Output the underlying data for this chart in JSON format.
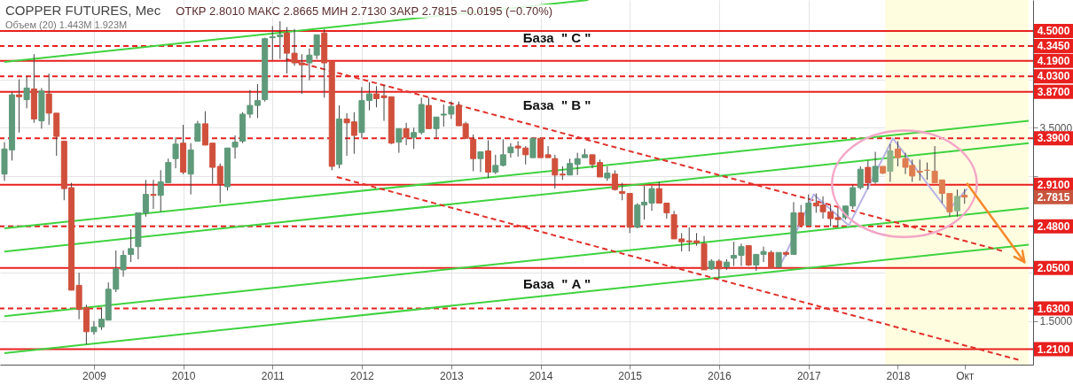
{
  "chart_data": {
    "type": "candlestick",
    "title": "COPPER FUTURES, Мес",
    "subtitle": "ОТКР 2.8010   МАКС 2.8665   МИН 2.7130   ЗАКР 2.7815   −0.0195 (−0.70%)",
    "annotations": [
      "Объем (20)  1.443M  1.923M",
      "База  \" C \"",
      "База  \" B \"",
      "База  \" A \"",
      "2.7815"
    ],
    "x": [
      "2008-01",
      "2008-02",
      "2008-03",
      "2008-04",
      "2008-05",
      "2008-06",
      "2008-07",
      "2008-08",
      "2008-09",
      "2008-10",
      "2008-11",
      "2008-12",
      "2009-01",
      "2009-02",
      "2009-03",
      "2009-04",
      "2009-05",
      "2009-06",
      "2009-07",
      "2009-08",
      "2009-09",
      "2009-10",
      "2009-11",
      "2009-12",
      "2010-01",
      "2010-02",
      "2010-03",
      "2010-04",
      "2010-05",
      "2010-06",
      "2010-07",
      "2010-08",
      "2010-09",
      "2010-10",
      "2010-11",
      "2010-12",
      "2011-01",
      "2011-02",
      "2011-03",
      "2011-04",
      "2011-05",
      "2011-06",
      "2011-07",
      "2011-08",
      "2011-09",
      "2011-10",
      "2011-11",
      "2011-12",
      "2012-01",
      "2012-02",
      "2012-03",
      "2012-04",
      "2012-05",
      "2012-06",
      "2012-07",
      "2012-08",
      "2012-09",
      "2012-10",
      "2012-11",
      "2012-12",
      "2013-01",
      "2013-02",
      "2013-03",
      "2013-04",
      "2013-05",
      "2013-06",
      "2013-07",
      "2013-08",
      "2013-09",
      "2013-10",
      "2013-11",
      "2013-12",
      "2014-01",
      "2014-02",
      "2014-03",
      "2014-04",
      "2014-05",
      "2014-06",
      "2014-07",
      "2014-08",
      "2014-09",
      "2014-10",
      "2014-11",
      "2014-12",
      "2015-01",
      "2015-02",
      "2015-03",
      "2015-04",
      "2015-05",
      "2015-06",
      "2015-07",
      "2015-08",
      "2015-09",
      "2015-10",
      "2015-11",
      "2015-12",
      "2016-01",
      "2016-02",
      "2016-03",
      "2016-04",
      "2016-05",
      "2016-06",
      "2016-07",
      "2016-08",
      "2016-09",
      "2016-10",
      "2016-11",
      "2016-12",
      "2017-01",
      "2017-02",
      "2017-03",
      "2017-04",
      "2017-05",
      "2017-06",
      "2017-07",
      "2017-08",
      "2017-09",
      "2017-10",
      "2017-11",
      "2017-12",
      "2018-01",
      "2018-02",
      "2018-03",
      "2018-04",
      "2018-05",
      "2018-06",
      "2018-07",
      "2018-08",
      "2018-09",
      "2018-10"
    ],
    "ohlc": [
      [
        3.02,
        3.35,
        2.95,
        3.28
      ],
      [
        3.27,
        3.87,
        3.16,
        3.84
      ],
      [
        3.84,
        4.0,
        3.45,
        3.82
      ],
      [
        3.79,
        4.03,
        3.7,
        3.91
      ],
      [
        3.9,
        4.26,
        3.55,
        3.59
      ],
      [
        3.57,
        3.91,
        3.49,
        3.88
      ],
      [
        3.85,
        4.06,
        3.53,
        3.65
      ],
      [
        3.65,
        3.65,
        3.21,
        3.41
      ],
      [
        3.36,
        3.36,
        2.75,
        2.87
      ],
      [
        2.88,
        2.93,
        1.82,
        1.82
      ],
      [
        1.87,
        2.0,
        1.52,
        1.62
      ],
      [
        1.64,
        1.67,
        1.26,
        1.39
      ],
      [
        1.39,
        1.5,
        1.36,
        1.44
      ],
      [
        1.44,
        1.64,
        1.41,
        1.52
      ],
      [
        1.51,
        1.9,
        1.51,
        1.83
      ],
      [
        1.83,
        2.23,
        1.8,
        2.04
      ],
      [
        2.03,
        2.23,
        1.96,
        2.18
      ],
      [
        2.19,
        2.45,
        2.11,
        2.25
      ],
      [
        2.27,
        2.62,
        2.14,
        2.62
      ],
      [
        2.62,
        2.96,
        2.58,
        2.81
      ],
      [
        2.81,
        2.96,
        2.66,
        2.8
      ],
      [
        2.8,
        3.06,
        2.63,
        2.94
      ],
      [
        2.93,
        3.18,
        2.93,
        3.14
      ],
      [
        3.18,
        3.4,
        3.08,
        3.33
      ],
      [
        3.34,
        3.53,
        3.02,
        3.04
      ],
      [
        3.02,
        3.34,
        2.81,
        3.27
      ],
      [
        3.36,
        3.57,
        3.36,
        3.54
      ],
      [
        3.54,
        3.67,
        3.32,
        3.32
      ],
      [
        3.34,
        3.34,
        2.92,
        3.09
      ],
      [
        3.1,
        3.13,
        2.72,
        2.92
      ],
      [
        2.89,
        3.29,
        2.85,
        3.29
      ],
      [
        3.3,
        3.42,
        3.18,
        3.35
      ],
      [
        3.36,
        3.66,
        3.34,
        3.64
      ],
      [
        3.64,
        3.89,
        3.6,
        3.73
      ],
      [
        3.73,
        3.95,
        3.6,
        3.78
      ],
      [
        3.79,
        4.43,
        3.77,
        4.42
      ],
      [
        4.43,
        4.55,
        4.2,
        4.44
      ],
      [
        4.44,
        4.6,
        4.21,
        4.46
      ],
      [
        4.48,
        4.54,
        4.06,
        4.27
      ],
      [
        4.27,
        4.52,
        4.14,
        4.17
      ],
      [
        4.17,
        4.26,
        3.85,
        4.15
      ],
      [
        4.17,
        4.32,
        3.99,
        4.25
      ],
      [
        4.25,
        4.46,
        4.21,
        4.46
      ],
      [
        4.48,
        4.52,
        3.81,
        4.17
      ],
      [
        4.18,
        4.18,
        3.06,
        3.1
      ],
      [
        3.12,
        3.73,
        3.08,
        3.59
      ],
      [
        3.59,
        3.65,
        3.21,
        3.55
      ],
      [
        3.56,
        3.66,
        3.23,
        3.42
      ],
      [
        3.45,
        3.92,
        3.39,
        3.78
      ],
      [
        3.78,
        3.97,
        3.68,
        3.85
      ],
      [
        3.85,
        3.93,
        3.71,
        3.8
      ],
      [
        3.83,
        3.94,
        3.57,
        3.81
      ],
      [
        3.82,
        3.82,
        3.33,
        3.34
      ],
      [
        3.35,
        3.49,
        3.24,
        3.49
      ],
      [
        3.49,
        3.55,
        3.32,
        3.4
      ],
      [
        3.4,
        3.5,
        3.28,
        3.45
      ],
      [
        3.45,
        3.81,
        3.43,
        3.74
      ],
      [
        3.73,
        3.81,
        3.49,
        3.49
      ],
      [
        3.49,
        3.61,
        3.39,
        3.61
      ],
      [
        3.63,
        3.74,
        3.51,
        3.64
      ],
      [
        3.64,
        3.77,
        3.59,
        3.72
      ],
      [
        3.73,
        3.77,
        3.52,
        3.52
      ],
      [
        3.54,
        3.56,
        3.39,
        3.39
      ],
      [
        3.38,
        3.43,
        3.05,
        3.18
      ],
      [
        3.18,
        3.25,
        3.04,
        3.25
      ],
      [
        3.26,
        3.37,
        2.98,
        3.04
      ],
      [
        3.04,
        3.22,
        3.02,
        3.11
      ],
      [
        3.11,
        3.38,
        3.1,
        3.22
      ],
      [
        3.24,
        3.34,
        3.19,
        3.3
      ],
      [
        3.31,
        3.36,
        3.2,
        3.29
      ],
      [
        3.29,
        3.31,
        3.12,
        3.22
      ],
      [
        3.19,
        3.4,
        3.19,
        3.39
      ],
      [
        3.39,
        3.4,
        3.19,
        3.19
      ],
      [
        3.22,
        3.31,
        3.19,
        3.19
      ],
      [
        3.18,
        3.22,
        2.87,
        3.01
      ],
      [
        3.02,
        3.1,
        2.96,
        3.01
      ],
      [
        3.01,
        3.18,
        3.01,
        3.13
      ],
      [
        3.12,
        3.24,
        3.01,
        3.18
      ],
      [
        3.19,
        3.28,
        3.19,
        3.22
      ],
      [
        3.22,
        3.22,
        3.08,
        3.12
      ],
      [
        3.14,
        3.17,
        2.99,
        2.99
      ],
      [
        2.98,
        3.1,
        2.95,
        3.03
      ],
      [
        3.02,
        3.06,
        2.85,
        2.86
      ],
      [
        2.84,
        2.93,
        2.75,
        2.82
      ],
      [
        2.82,
        2.82,
        2.41,
        2.47
      ],
      [
        2.47,
        2.72,
        2.46,
        2.7
      ],
      [
        2.7,
        2.9,
        2.55,
        2.73
      ],
      [
        2.72,
        2.9,
        2.64,
        2.87
      ],
      [
        2.87,
        2.94,
        2.72,
        2.72
      ],
      [
        2.72,
        2.72,
        2.56,
        2.62
      ],
      [
        2.6,
        2.64,
        2.35,
        2.35
      ],
      [
        2.35,
        2.41,
        2.22,
        2.32
      ],
      [
        2.33,
        2.47,
        2.22,
        2.32
      ],
      [
        2.33,
        2.41,
        2.28,
        2.31
      ],
      [
        2.3,
        2.38,
        2.03,
        2.03
      ],
      [
        2.04,
        2.14,
        2.03,
        2.12
      ],
      [
        2.12,
        2.14,
        1.94,
        2.04
      ],
      [
        2.06,
        2.14,
        2.03,
        2.11
      ],
      [
        2.15,
        2.32,
        2.07,
        2.18
      ],
      [
        2.18,
        2.3,
        2.07,
        2.27
      ],
      [
        2.28,
        2.28,
        2.07,
        2.08
      ],
      [
        2.08,
        2.19,
        2.02,
        2.19
      ],
      [
        2.19,
        2.27,
        2.11,
        2.22
      ],
      [
        2.21,
        2.23,
        2.05,
        2.05
      ],
      [
        2.06,
        2.21,
        2.05,
        2.21
      ],
      [
        2.21,
        2.22,
        2.17,
        2.19
      ],
      [
        2.19,
        2.73,
        2.19,
        2.62
      ],
      [
        2.62,
        2.7,
        2.49,
        2.49
      ],
      [
        2.49,
        2.81,
        2.49,
        2.72
      ],
      [
        2.72,
        2.82,
        2.62,
        2.69
      ],
      [
        2.7,
        2.79,
        2.56,
        2.63
      ],
      [
        2.63,
        2.7,
        2.48,
        2.56
      ],
      [
        2.57,
        2.67,
        2.47,
        2.55
      ],
      [
        2.57,
        2.69,
        2.55,
        2.69
      ],
      [
        2.69,
        2.91,
        2.66,
        2.88
      ],
      [
        2.88,
        3.1,
        2.86,
        3.07
      ],
      [
        3.09,
        3.16,
        2.86,
        2.93
      ],
      [
        2.94,
        3.25,
        2.92,
        3.1
      ],
      [
        3.1,
        3.1,
        3.02,
        3.03
      ],
      [
        3.05,
        3.33,
        2.94,
        3.26
      ],
      [
        3.28,
        3.36,
        3.1,
        3.19
      ],
      [
        3.18,
        3.24,
        3.02,
        3.09
      ],
      [
        3.11,
        3.17,
        2.94,
        3.0
      ],
      [
        3.05,
        3.17,
        2.95,
        3.04
      ],
      [
        3.06,
        3.14,
        2.96,
        3.06
      ],
      [
        3.05,
        3.31,
        2.93,
        2.93
      ],
      [
        2.96,
        2.96,
        2.72,
        2.82
      ],
      [
        2.82,
        2.82,
        2.58,
        2.63
      ],
      [
        2.64,
        2.86,
        2.58,
        2.79
      ],
      [
        2.801,
        2.8665,
        2.713,
        2.7815
      ]
    ],
    "colors": [
      "#5f9a7a",
      "#5f9a7a",
      "#d0503c",
      "#5f9a7a",
      "#d0503c",
      "#5f9a7a",
      "#d0503c",
      "#d0503c",
      "#d0503c",
      "#d0503c",
      "#d0503c",
      "#d0503c",
      "#5f9a7a",
      "#5f9a7a",
      "#5f9a7a",
      "#5f9a7a",
      "#5f9a7a",
      "#5f9a7a",
      "#5f9a7a",
      "#5f9a7a",
      "#d0503c",
      "#5f9a7a",
      "#5f9a7a",
      "#5f9a7a",
      "#d0503c",
      "#5f9a7a",
      "#5f9a7a",
      "#d0503c",
      "#d0503c",
      "#d0503c",
      "#5f9a7a",
      "#5f9a7a",
      "#5f9a7a",
      "#5f9a7a",
      "#5f9a7a",
      "#5f9a7a",
      "#5f9a7a",
      "#5f9a7a",
      "#d0503c",
      "#d0503c",
      "#d0503c",
      "#5f9a7a",
      "#5f9a7a",
      "#d0503c",
      "#d0503c",
      "#5f9a7a",
      "#d0503c",
      "#d0503c",
      "#5f9a7a",
      "#5f9a7a",
      "#d0503c",
      "#d0503c",
      "#d0503c",
      "#5f9a7a",
      "#d0503c",
      "#5f9a7a",
      "#5f9a7a",
      "#d0503c",
      "#5f9a7a",
      "#5f9a7a",
      "#5f9a7a",
      "#d0503c",
      "#d0503c",
      "#d0503c",
      "#5f9a7a",
      "#d0503c",
      "#5f9a7a",
      "#5f9a7a",
      "#5f9a7a",
      "#d0503c",
      "#d0503c",
      "#5f9a7a",
      "#d0503c",
      "#d0503c",
      "#d0503c",
      "#d0503c",
      "#5f9a7a",
      "#5f9a7a",
      "#5f9a7a",
      "#d0503c",
      "#d0503c",
      "#5f9a7a",
      "#d0503c",
      "#d0503c",
      "#d0503c",
      "#5f9a7a",
      "#5f9a7a",
      "#5f9a7a",
      "#d0503c",
      "#d0503c",
      "#d0503c",
      "#d0503c",
      "#d0503c",
      "#d0503c",
      "#d0503c",
      "#5f9a7a",
      "#d0503c",
      "#5f9a7a",
      "#5f9a7a",
      "#5f9a7a",
      "#d0503c",
      "#5f9a7a",
      "#5f9a7a",
      "#d0503c",
      "#5f9a7a",
      "#d0503c",
      "#5f9a7a",
      "#d0503c",
      "#5f9a7a",
      "#d0503c",
      "#d0503c",
      "#d0503c",
      "#d0503c",
      "#5f9a7a",
      "#5f9a7a",
      "#5f9a7a",
      "#d0503c",
      "#5f9a7a",
      "#de7d50",
      "#8db48c",
      "#de7d50",
      "#de7d50",
      "#de7d50",
      "#de7d50",
      "#de7d50",
      "#de7d50",
      "#de7d50",
      "#de7d50",
      "#8db48c",
      "#de7d50"
    ],
    "series": [
      {
        "type": "line",
        "color": "#3fd23f",
        "x": [
          "2008-01-01",
          "2014-07-15"
        ],
        "values": [
          4.18,
          4.82
        ]
      },
      {
        "type": "line",
        "color": "#3fd23f",
        "x": [
          "2008-01-01",
          "2019-06-20"
        ],
        "values": [
          2.46,
          3.57
        ]
      },
      {
        "type": "line",
        "color": "#3fd23f",
        "x": [
          "2008-01-01",
          "2019-06-20"
        ],
        "values": [
          2.22,
          3.34
        ]
      },
      {
        "type": "line",
        "color": "#3fd23f",
        "x": [
          "2008-01-01",
          "2019-06-20"
        ],
        "values": [
          1.55,
          2.67
        ]
      },
      {
        "type": "line",
        "color": "#3fd23f",
        "x": [
          "2008-01-01",
          "2019-06-20"
        ],
        "values": [
          1.17,
          2.29
        ]
      },
      {
        "type": "line",
        "color": "#e0302a",
        "line_style": "dashed",
        "x": [
          "2011-02-25",
          "2019-03-12"
        ],
        "values": [
          4.21,
          2.22
        ]
      },
      {
        "type": "line",
        "color": "#e0302a",
        "line_style": "dashed",
        "x": [
          "2011-09-21",
          "2019-05-09"
        ],
        "values": [
          2.99,
          1.1
        ]
      },
      {
        "type": "line",
        "color": "#b8b2e6",
        "x": [
          "2016-09-12",
          "2017-01-22",
          "2017-06-15",
          "2017-12-12",
          "2018-07-25",
          "2018-10-12"
        ],
        "values": [
          2.1,
          2.81,
          2.49,
          3.39,
          2.64,
          2.87
        ]
      }
    ],
    "ref_lines": [
      {
        "axis": "y",
        "value": 4.5,
        "label": "4.5000",
        "color": "#e8201e",
        "line_style": "solid"
      },
      {
        "axis": "y",
        "value": 4.345,
        "label": "4.3450",
        "color": "#e8201e",
        "line_style": "dashed"
      },
      {
        "axis": "y",
        "value": 4.19,
        "label": "4.1900",
        "color": "#e8201e",
        "line_style": "solid"
      },
      {
        "axis": "y",
        "value": 4.03,
        "label": "4.0300",
        "color": "#e8201e",
        "line_style": "dashed"
      },
      {
        "axis": "y",
        "value": 3.87,
        "label": "3.8700",
        "color": "#e8201e",
        "line_style": "solid"
      },
      {
        "axis": "y",
        "value": 3.39,
        "label": "3.3900",
        "color": "#e8201e",
        "line_style": "dashed"
      },
      {
        "axis": "y",
        "value": 2.91,
        "label": "2.9100",
        "color": "#e8201e",
        "line_style": "solid"
      },
      {
        "axis": "y",
        "value": 2.48,
        "label": "2.4800",
        "color": "#e8201e",
        "line_style": "dashed"
      },
      {
        "axis": "y",
        "value": 2.05,
        "label": "2.0500",
        "color": "#e8201e",
        "line_style": "solid"
      },
      {
        "axis": "y",
        "value": 1.63,
        "label": "1.6300",
        "color": "#e8201e",
        "line_style": "dashed"
      },
      {
        "axis": "y",
        "value": 1.21,
        "label": "1.2100",
        "color": "#e8201e",
        "line_style": "solid"
      }
    ],
    "bands": [
      {
        "axis": "x",
        "from": "2017-11-10",
        "to": "2019-06-20",
        "color": "#fffde0"
      }
    ],
    "xlim": [
      "2008-01-01",
      "2019-06-20"
    ],
    "xticks": [
      "2009",
      "2010",
      "2011",
      "2012",
      "2013",
      "2014",
      "2015",
      "2016",
      "2017",
      "2018",
      {
        "value": "2018-10",
        "label": "Окт"
      }
    ],
    "ylim": [
      1.05,
      4.82
    ],
    "yticks": [
      {
        "value": 1.5,
        "label": "1.5000"
      },
      {
        "value": 2.0,
        "label": null
      },
      {
        "value": 2.5,
        "label": null
      },
      {
        "value": 3.0,
        "label": null
      },
      {
        "value": 3.5,
        "label": "3.5000"
      },
      {
        "value": 4.0,
        "label": null
      },
      {
        "value": 4.5,
        "label": null
      }
    ],
    "grid": true
  }
}
